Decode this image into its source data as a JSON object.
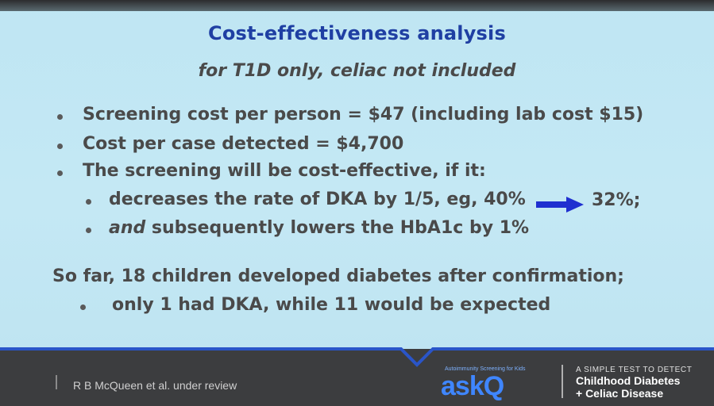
{
  "slide": {
    "title": "Cost-effectiveness analysis",
    "subtitle": "for T1D only, celiac not included",
    "bullets": [
      "Screening cost per person = $47 (including lab cost $15)",
      "Cost per case detected  = $4,700",
      "The screening will be cost-effective, if it:"
    ],
    "sub_bullets": {
      "dka_text": "decreases the rate of DKA by 1/5, eg,  40%",
      "dka_result": "32%;",
      "and_word": "and",
      "hba1c_text": " subsequently lowers the HbA1c by 1%"
    },
    "summary": "So far, 18 children developed diabetes after confirmation;",
    "summary_sub": "only 1 had DKA, while 11 would be expected"
  },
  "footer": {
    "citation": "R B McQueen et al. under review",
    "logo_small_text": "Autoimmunity Screening for Kids",
    "logo_text": "askQ",
    "tagline_1": "A SIMPLE TEST TO DETECT",
    "tagline_2": "Childhood Diabetes",
    "tagline_3": "+ Celiac Disease"
  },
  "colors": {
    "background": "#c4e8f4",
    "title": "#1f3fa3",
    "body_text": "#4a4a4a",
    "arrow": "#1f2fd0",
    "footer": "#3c3d3f",
    "logo": "#3f86ff"
  }
}
